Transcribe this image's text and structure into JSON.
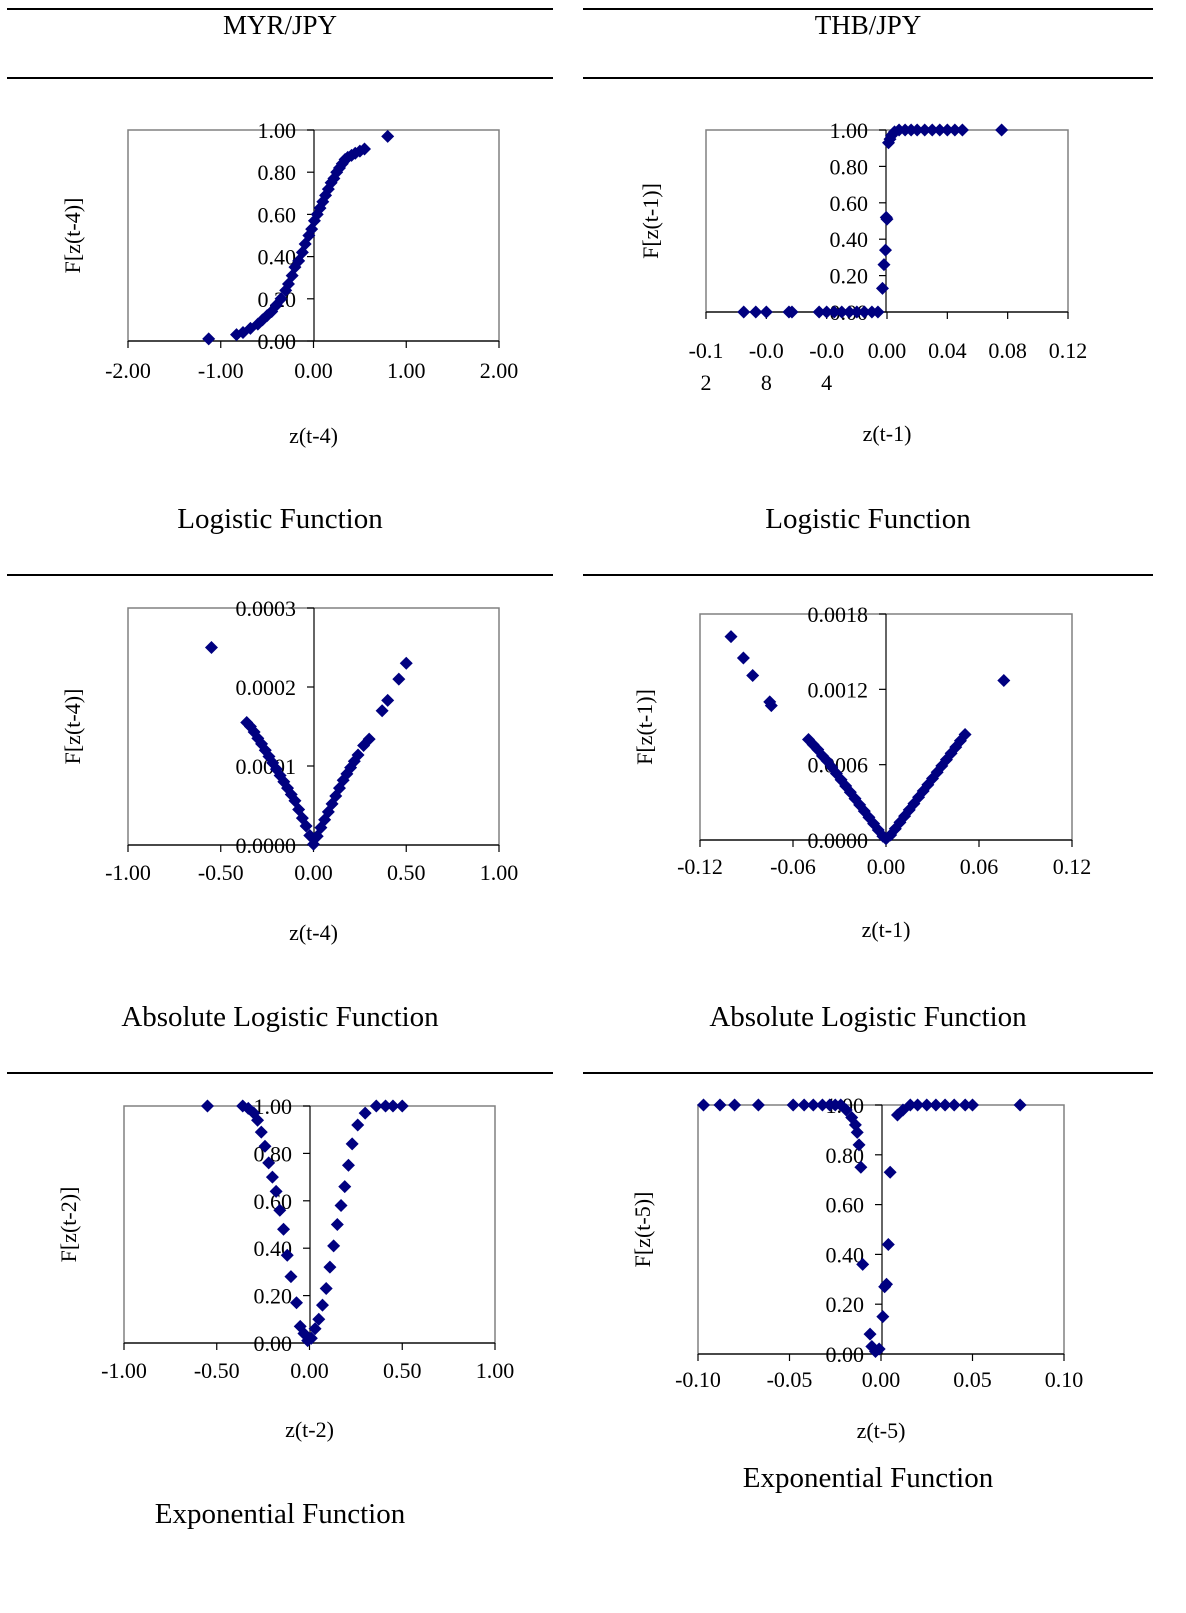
{
  "header": {
    "left_title": "MYR/JPY",
    "right_title": "THB/JPY"
  },
  "captions": {
    "r1_left": "Logistic Function",
    "r1_right": "Logistic Function",
    "r2_left": "Absolute Logistic Function",
    "r2_right": "Absolute Logistic Function",
    "r3_left": "Exponential Function",
    "r3_right": "Exponential Function"
  },
  "chart_data": [
    {
      "id": "myr-logistic",
      "type": "scatter",
      "marker_color": "#000080",
      "xlabel": "z(t-4)",
      "ylabel": "F[z(t-4)]",
      "xlim": [
        -2,
        2
      ],
      "ylim": [
        0,
        1
      ],
      "xticks": [
        "-2.00",
        "-1.00",
        "0.00",
        "1.00",
        "2.00"
      ],
      "yticks": [
        "0.00",
        "0.20",
        "0.40",
        "0.60",
        "0.80",
        "1.00"
      ],
      "x": [
        -1.13,
        -0.83,
        -0.76,
        -0.68,
        -0.6,
        -0.55,
        -0.5,
        -0.45,
        -0.4,
        -0.35,
        -0.3,
        -0.27,
        -0.23,
        -0.2,
        -0.16,
        -0.12,
        -0.09,
        -0.05,
        -0.02,
        0.01,
        0.04,
        0.07,
        0.1,
        0.13,
        0.16,
        0.19,
        0.22,
        0.25,
        0.28,
        0.31,
        0.34,
        0.37,
        0.41,
        0.45,
        0.5,
        0.55,
        0.8
      ],
      "y": [
        0.01,
        0.03,
        0.04,
        0.06,
        0.08,
        0.1,
        0.12,
        0.14,
        0.17,
        0.2,
        0.24,
        0.27,
        0.31,
        0.35,
        0.38,
        0.42,
        0.46,
        0.5,
        0.53,
        0.57,
        0.6,
        0.63,
        0.66,
        0.69,
        0.72,
        0.75,
        0.77,
        0.8,
        0.82,
        0.84,
        0.86,
        0.87,
        0.88,
        0.89,
        0.9,
        0.91,
        0.97
      ]
    },
    {
      "id": "thb-logistic",
      "type": "scatter",
      "marker_color": "#000080",
      "xlabel": "z(t-1)",
      "ylabel": "F[z(t-1)]",
      "xlim": [
        -0.12,
        0.12
      ],
      "ylim": [
        0,
        1
      ],
      "xticks": [
        "-0.1\n2",
        "-0.0\n8",
        "-0.0\n4",
        "0.00",
        "0.04",
        "0.08",
        "0.12"
      ],
      "yticks": [
        "0.00",
        "0.20",
        "0.40",
        "0.60",
        "0.80",
        "1.00"
      ],
      "x": [
        -0.095,
        -0.087,
        -0.08,
        -0.065,
        -0.063,
        -0.045,
        -0.04,
        -0.035,
        -0.03,
        -0.025,
        -0.02,
        -0.015,
        -0.01,
        -0.006,
        -0.003,
        -0.002,
        -0.001,
        -0.0005,
        0,
        0.001,
        0.002,
        0.003,
        0.005,
        0.008,
        0.012,
        0.016,
        0.02,
        0.025,
        0.03,
        0.035,
        0.04,
        0.045,
        0.05,
        0.076
      ],
      "y": [
        0,
        0,
        0,
        0,
        0,
        0,
        0,
        0,
        0,
        0,
        0,
        0,
        0,
        0,
        0.13,
        0.26,
        0.34,
        0.52,
        0.51,
        0.93,
        0.95,
        0.97,
        0.99,
        1,
        1,
        1,
        1,
        1,
        1,
        1,
        1,
        1,
        1,
        1
      ]
    },
    {
      "id": "myr-abs-logistic",
      "type": "scatter",
      "marker_color": "#000080",
      "xlabel": "z(t-4)",
      "ylabel": "F[z(t-4)]",
      "xlim": [
        -1,
        1
      ],
      "ylim": [
        0,
        0.0003
      ],
      "xticks": [
        "-1.00",
        "-0.50",
        "0.00",
        "0.50",
        "1.00"
      ],
      "yticks": [
        "0.0000",
        "0.0001",
        "0.0002",
        "0.0003"
      ],
      "x": [
        -0.55,
        -0.36,
        -0.34,
        -0.32,
        -0.3,
        -0.28,
        -0.26,
        -0.24,
        -0.22,
        -0.2,
        -0.18,
        -0.16,
        -0.14,
        -0.12,
        -0.1,
        -0.08,
        -0.06,
        -0.04,
        -0.02,
        0,
        0.02,
        0.04,
        0.06,
        0.08,
        0.1,
        0.12,
        0.14,
        0.16,
        0.18,
        0.2,
        0.22,
        0.24,
        0.27,
        0.3,
        0.37,
        0.4,
        0.46,
        0.5
      ],
      "y": [
        0.00025,
        0.000155,
        0.00015,
        0.000143,
        0.000135,
        0.000128,
        0.00012,
        0.000112,
        0.000104,
        9.6e-05,
        8.8e-05,
        8e-05,
        7.2e-05,
        6.4e-05,
        5.6e-05,
        4.5e-05,
        3.4e-05,
        2.4e-05,
        1.2e-05,
        1e-06,
        1.1e-05,
        2.2e-05,
        3.2e-05,
        4.2e-05,
        5.2e-05,
        6.2e-05,
        7.2e-05,
        8.2e-05,
        9e-05,
        9.8e-05,
        0.000106,
        0.000114,
        0.000126,
        0.000134,
        0.00017,
        0.000183,
        0.00021,
        0.00023
      ]
    },
    {
      "id": "thb-abs-logistic",
      "type": "scatter",
      "marker_color": "#000080",
      "xlabel": "z(t-1)",
      "ylabel": "F[z(t-1)]",
      "xlim": [
        -0.12,
        0.12
      ],
      "ylim": [
        0,
        0.0018
      ],
      "xticks": [
        "-0.12",
        "-0.06",
        "0.00",
        "0.06",
        "0.12"
      ],
      "yticks": [
        "0.0000",
        "0.0006",
        "0.0012",
        "0.0018"
      ],
      "x": [
        -0.1,
        -0.092,
        -0.086,
        -0.075,
        -0.074,
        -0.05,
        -0.047,
        -0.044,
        -0.041,
        -0.038,
        -0.035,
        -0.032,
        -0.029,
        -0.026,
        -0.023,
        -0.02,
        -0.017,
        -0.014,
        -0.011,
        -0.008,
        -0.005,
        -0.002,
        0,
        0.003,
        0.006,
        0.009,
        0.012,
        0.015,
        0.018,
        0.021,
        0.024,
        0.027,
        0.03,
        0.033,
        0.036,
        0.039,
        0.042,
        0.045,
        0.048,
        0.051,
        0.076
      ],
      "y": [
        0.00162,
        0.00145,
        0.00131,
        0.0011,
        0.00107,
        0.0008,
        0.00076,
        0.00072,
        0.00067,
        0.00063,
        0.00058,
        0.00053,
        0.00048,
        0.00043,
        0.00038,
        0.00033,
        0.00028,
        0.00023,
        0.00018,
        0.00013,
        8e-05,
        3e-05,
        1e-05,
        4e-05,
        9e-05,
        0.00014,
        0.00019,
        0.00024,
        0.00029,
        0.00034,
        0.00039,
        0.00044,
        0.00049,
        0.00054,
        0.00059,
        0.00064,
        0.00069,
        0.00074,
        0.00079,
        0.00084,
        0.00127
      ]
    },
    {
      "id": "myr-exponential",
      "type": "scatter",
      "marker_color": "#000080",
      "xlabel": "z(t-2)",
      "ylabel": "F[z(t-2)]",
      "xlim": [
        -1,
        1
      ],
      "ylim": [
        0,
        1
      ],
      "xticks": [
        "-1.00",
        "-0.50",
        "0.00",
        "0.50",
        "1.00"
      ],
      "yticks": [
        "0.00",
        "0.20",
        "0.40",
        "0.60",
        "0.80",
        "1.00"
      ],
      "x": [
        -0.55,
        -0.36,
        -0.33,
        -0.3,
        -0.28,
        -0.26,
        -0.24,
        -0.22,
        -0.2,
        -0.18,
        -0.16,
        -0.14,
        -0.12,
        -0.1,
        -0.07,
        -0.05,
        -0.03,
        -0.01,
        0.01,
        0.03,
        0.05,
        0.07,
        0.09,
        0.11,
        0.13,
        0.15,
        0.17,
        0.19,
        0.21,
        0.23,
        0.26,
        0.3,
        0.36,
        0.41,
        0.45,
        0.5
      ],
      "y": [
        1,
        1,
        0.99,
        0.97,
        0.94,
        0.89,
        0.83,
        0.76,
        0.7,
        0.64,
        0.56,
        0.48,
        0.37,
        0.28,
        0.17,
        0.07,
        0.04,
        0.01,
        0.02,
        0.06,
        0.1,
        0.16,
        0.23,
        0.32,
        0.41,
        0.5,
        0.58,
        0.66,
        0.75,
        0.84,
        0.92,
        0.97,
        1,
        1,
        1,
        1
      ]
    },
    {
      "id": "thb-exponential",
      "type": "scatter",
      "marker_color": "#000080",
      "xlabel": "z(t-5)",
      "ylabel": "F[z(t-5)]",
      "xlim": [
        -0.1,
        0.1
      ],
      "ylim": [
        0,
        1
      ],
      "xticks": [
        "-0.10",
        "-0.05",
        "0.00",
        "0.05",
        "0.10"
      ],
      "yticks": [
        "0.00",
        "0.20",
        "0.40",
        "0.60",
        "0.80",
        "1.00"
      ],
      "x": [
        -0.097,
        -0.088,
        -0.08,
        -0.067,
        -0.048,
        -0.042,
        -0.037,
        -0.032,
        -0.028,
        -0.025,
        -0.022,
        -0.019,
        -0.016,
        -0.014,
        -0.013,
        -0.012,
        -0.011,
        -0.01,
        -0.006,
        -0.005,
        -0.003,
        -0.001,
        0.001,
        0.002,
        0.003,
        0.004,
        0.005,
        0.009,
        0.012,
        0.016,
        0.02,
        0.025,
        0.03,
        0.035,
        0.04,
        0.046,
        0.05,
        0.076
      ],
      "y": [
        1,
        1,
        1,
        1,
        1,
        1,
        1,
        1,
        1,
        1,
        1,
        0.98,
        0.95,
        0.92,
        0.89,
        0.84,
        0.75,
        0.36,
        0.08,
        0.03,
        0.01,
        0.02,
        0.15,
        0.27,
        0.28,
        0.44,
        0.73,
        0.96,
        0.98,
        1,
        1,
        1,
        1,
        1,
        1,
        1,
        1,
        1
      ]
    }
  ]
}
